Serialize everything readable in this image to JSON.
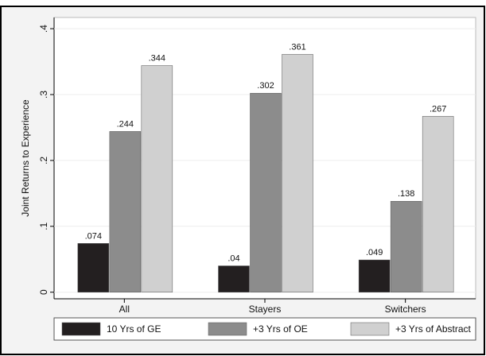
{
  "chart_data": {
    "type": "bar",
    "y_label": "Joint Returns to Experience",
    "categories": [
      "All",
      "Stayers",
      "Switchers"
    ],
    "series": [
      {
        "name": "10 Yrs of GE",
        "color": "#231f20",
        "values": [
          0.074,
          0.04,
          0.049
        ],
        "value_labels": [
          ".074",
          ".04",
          ".049"
        ]
      },
      {
        "name": "+3 Yrs of OE",
        "color": "#8c8c8c",
        "values": [
          0.244,
          0.302,
          0.138
        ],
        "value_labels": [
          ".244",
          ".302",
          ".138"
        ]
      },
      {
        "name": "+3 Yrs of Abstract",
        "color": "#d0d0d0",
        "values": [
          0.344,
          0.361,
          0.267
        ],
        "value_labels": [
          ".344",
          ".361",
          ".267"
        ]
      }
    ],
    "ylim": [
      -0.01,
      0.417
    ],
    "yticks": [
      0,
      {
        "value": 0.1,
        "label": ".1"
      },
      {
        "value": 0.2,
        "label": ".2"
      },
      {
        "value": 0.3,
        "label": ".3"
      },
      {
        "value": 0.4,
        "label": ".4"
      }
    ]
  }
}
